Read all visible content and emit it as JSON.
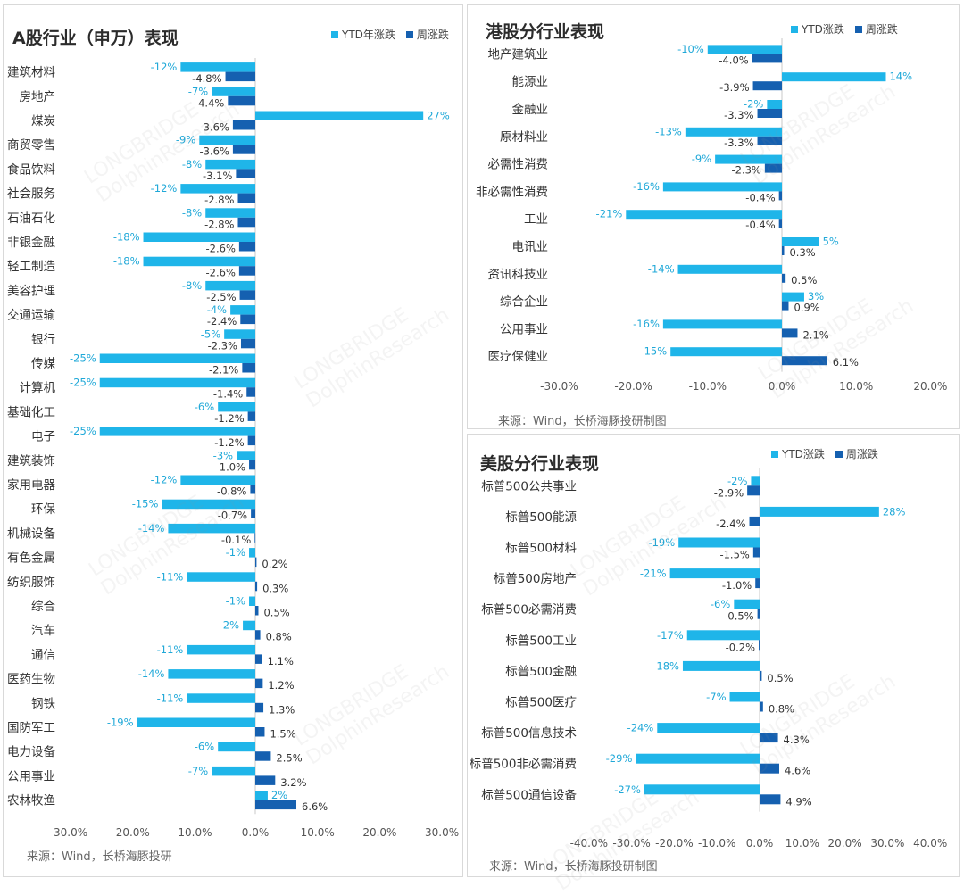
{
  "colors": {
    "ytd": "#1fb5e9",
    "week": "#1560b0",
    "label_ytd": "#1fa8d8",
    "label_week": "#333333",
    "category": "#333333",
    "tick": "#555555",
    "axis": "#c8c8c8"
  },
  "watermark": {
    "line1": "LONGBRIDGE",
    "line2": "DolphinResearch"
  },
  "chart_data": [
    {
      "id": "a-share",
      "type": "bar",
      "orientation": "horizontal",
      "title": "A股行业（申万）表现",
      "source": "来源：Wind，长桥海豚投研",
      "legend_position": "top-right",
      "xlim": [
        -30,
        30
      ],
      "xticks": [
        -30,
        -20,
        -10,
        0,
        10,
        20,
        30
      ],
      "xtick_labels": [
        "-30.0%",
        "-20.0%",
        "-10.0%",
        "0.0%",
        "10.0%",
        "20.0%",
        "30.0%"
      ],
      "categories": [
        "建筑材料",
        "房地产",
        "煤炭",
        "商贸零售",
        "食品饮料",
        "社会服务",
        "石油石化",
        "非银金融",
        "轻工制造",
        "美容护理",
        "交通运输",
        "银行",
        "传媒",
        "计算机",
        "基础化工",
        "电子",
        "建筑装饰",
        "家用电器",
        "环保",
        "机械设备",
        "有色金属",
        "纺织服饰",
        "综合",
        "汽车",
        "通信",
        "医药生物",
        "钢铁",
        "国防军工",
        "电力设备",
        "公用事业",
        "农林牧渔"
      ],
      "series": [
        {
          "name": "YTD年涨跌",
          "values": [
            -12,
            -7,
            27,
            -9,
            -8,
            -12,
            -8,
            -18,
            -18,
            -8,
            -4,
            -5,
            -25,
            -25,
            -6,
            -25,
            -3,
            -12,
            -15,
            -14,
            -1,
            -11,
            -1,
            -2,
            -11,
            -14,
            -11,
            -19,
            -6,
            -7,
            2
          ],
          "labels": [
            "-12%",
            "-7%",
            "27%",
            "-9%",
            "-8%",
            "-12%",
            "-8%",
            "-18%",
            "-18%",
            "-8%",
            "-4%",
            "-5%",
            "-25%",
            "-25%",
            "-6%",
            "-25%",
            "-3%",
            "-12%",
            "-15%",
            "-14%",
            "-1%",
            "-11%",
            "-1%",
            "-2%",
            "-11%",
            "-14%",
            "-11%",
            "-19%",
            "-6%",
            "-7%",
            "2%"
          ]
        },
        {
          "name": "周涨跌",
          "values": [
            -4.8,
            -4.4,
            -3.6,
            -3.6,
            -3.1,
            -2.8,
            -2.8,
            -2.6,
            -2.6,
            -2.5,
            -2.4,
            -2.3,
            -2.1,
            -1.4,
            -1.2,
            -1.2,
            -1.0,
            -0.8,
            -0.7,
            -0.1,
            0.2,
            0.3,
            0.5,
            0.8,
            1.1,
            1.2,
            1.3,
            1.5,
            2.5,
            3.2,
            6.6
          ],
          "labels": [
            "-4.8%",
            "-4.4%",
            "-3.6%",
            "-3.6%",
            "-3.1%",
            "-2.8%",
            "-2.8%",
            "-2.6%",
            "-2.6%",
            "-2.5%",
            "-2.4%",
            "-2.3%",
            "-2.1%",
            "-1.4%",
            "-1.2%",
            "-1.2%",
            "-1.0%",
            "-0.8%",
            "-0.7%",
            "-0.1%",
            "0.2%",
            "0.3%",
            "0.5%",
            "0.8%",
            "1.1%",
            "1.2%",
            "1.3%",
            "1.5%",
            "2.5%",
            "3.2%",
            "6.6%"
          ]
        }
      ]
    },
    {
      "id": "hk",
      "type": "bar",
      "orientation": "horizontal",
      "title": "港股分行业表现",
      "source": "来源：Wind，长桥海豚投研制图",
      "legend_position": "top-right",
      "xlim": [
        -30,
        20
      ],
      "xticks": [
        -30,
        -20,
        -10,
        0,
        10,
        20
      ],
      "xtick_labels": [
        "-30.0%",
        "-20.0%",
        "-10.0%",
        "0.0%",
        "10.0%",
        "20.0%"
      ],
      "categories": [
        "地产建筑业",
        "能源业",
        "金融业",
        "原材料业",
        "必需性消费",
        "非必需性消费",
        "工业",
        "电讯业",
        "资讯科技业",
        "综合企业",
        "公用事业",
        "医疗保健业"
      ],
      "series": [
        {
          "name": "YTD涨跌",
          "values": [
            -10,
            14,
            -2,
            -13,
            -9,
            -16,
            -21,
            5,
            -14,
            3,
            -16,
            -15
          ],
          "labels": [
            "-10%",
            "14%",
            "-2%",
            "-13%",
            "-9%",
            "-16%",
            "-21%",
            "5%",
            "-14%",
            "3%",
            "-16%",
            "-15%"
          ]
        },
        {
          "name": "周涨跌",
          "values": [
            -4.0,
            -3.9,
            -3.3,
            -3.3,
            -2.3,
            -0.4,
            -0.4,
            0.3,
            0.5,
            0.9,
            2.1,
            6.1
          ],
          "labels": [
            "-4.0%",
            "-3.9%",
            "-3.3%",
            "-3.3%",
            "-2.3%",
            "-0.4%",
            "-0.4%",
            "0.3%",
            "0.5%",
            "0.9%",
            "2.1%",
            "6.1%"
          ]
        }
      ]
    },
    {
      "id": "us",
      "type": "bar",
      "orientation": "horizontal",
      "title": "美股分行业表现",
      "source": "来源：Wind，长桥海豚投研制图",
      "legend_position": "top-right",
      "xlim": [
        -40,
        40
      ],
      "xticks": [
        -40,
        -30,
        -20,
        -10,
        0,
        10,
        20,
        30,
        40
      ],
      "xtick_labels": [
        "-40.0%",
        "-30.0%",
        "-20.0%",
        "-10.0%",
        "0.0%",
        "10.0%",
        "20.0%",
        "30.0%",
        "40.0%"
      ],
      "categories": [
        "标普500公共事业",
        "标普500能源",
        "标普500材料",
        "标普500房地产",
        "标普500必需消费",
        "标普500工业",
        "标普500金融",
        "标普500医疗",
        "标普500信息技术",
        "标普500非必需消费",
        "标普500通信设备"
      ],
      "series": [
        {
          "name": "YTD涨跌",
          "values": [
            -2,
            28,
            -19,
            -21,
            -6,
            -17,
            -18,
            -7,
            -24,
            -29,
            -27
          ],
          "labels": [
            "-2%",
            "28%",
            "-19%",
            "-21%",
            "-6%",
            "-17%",
            "-18%",
            "-7%",
            "-24%",
            "-29%",
            "-27%"
          ]
        },
        {
          "name": "周涨跌",
          "values": [
            -2.9,
            -2.4,
            -1.5,
            -1.0,
            -0.5,
            -0.2,
            0.5,
            0.8,
            4.3,
            4.6,
            4.9
          ],
          "labels": [
            "-2.9%",
            "-2.4%",
            "-1.5%",
            "-1.0%",
            "-0.5%",
            "-0.2%",
            "0.5%",
            "0.8%",
            "4.3%",
            "4.6%",
            "4.9%"
          ]
        }
      ]
    }
  ]
}
